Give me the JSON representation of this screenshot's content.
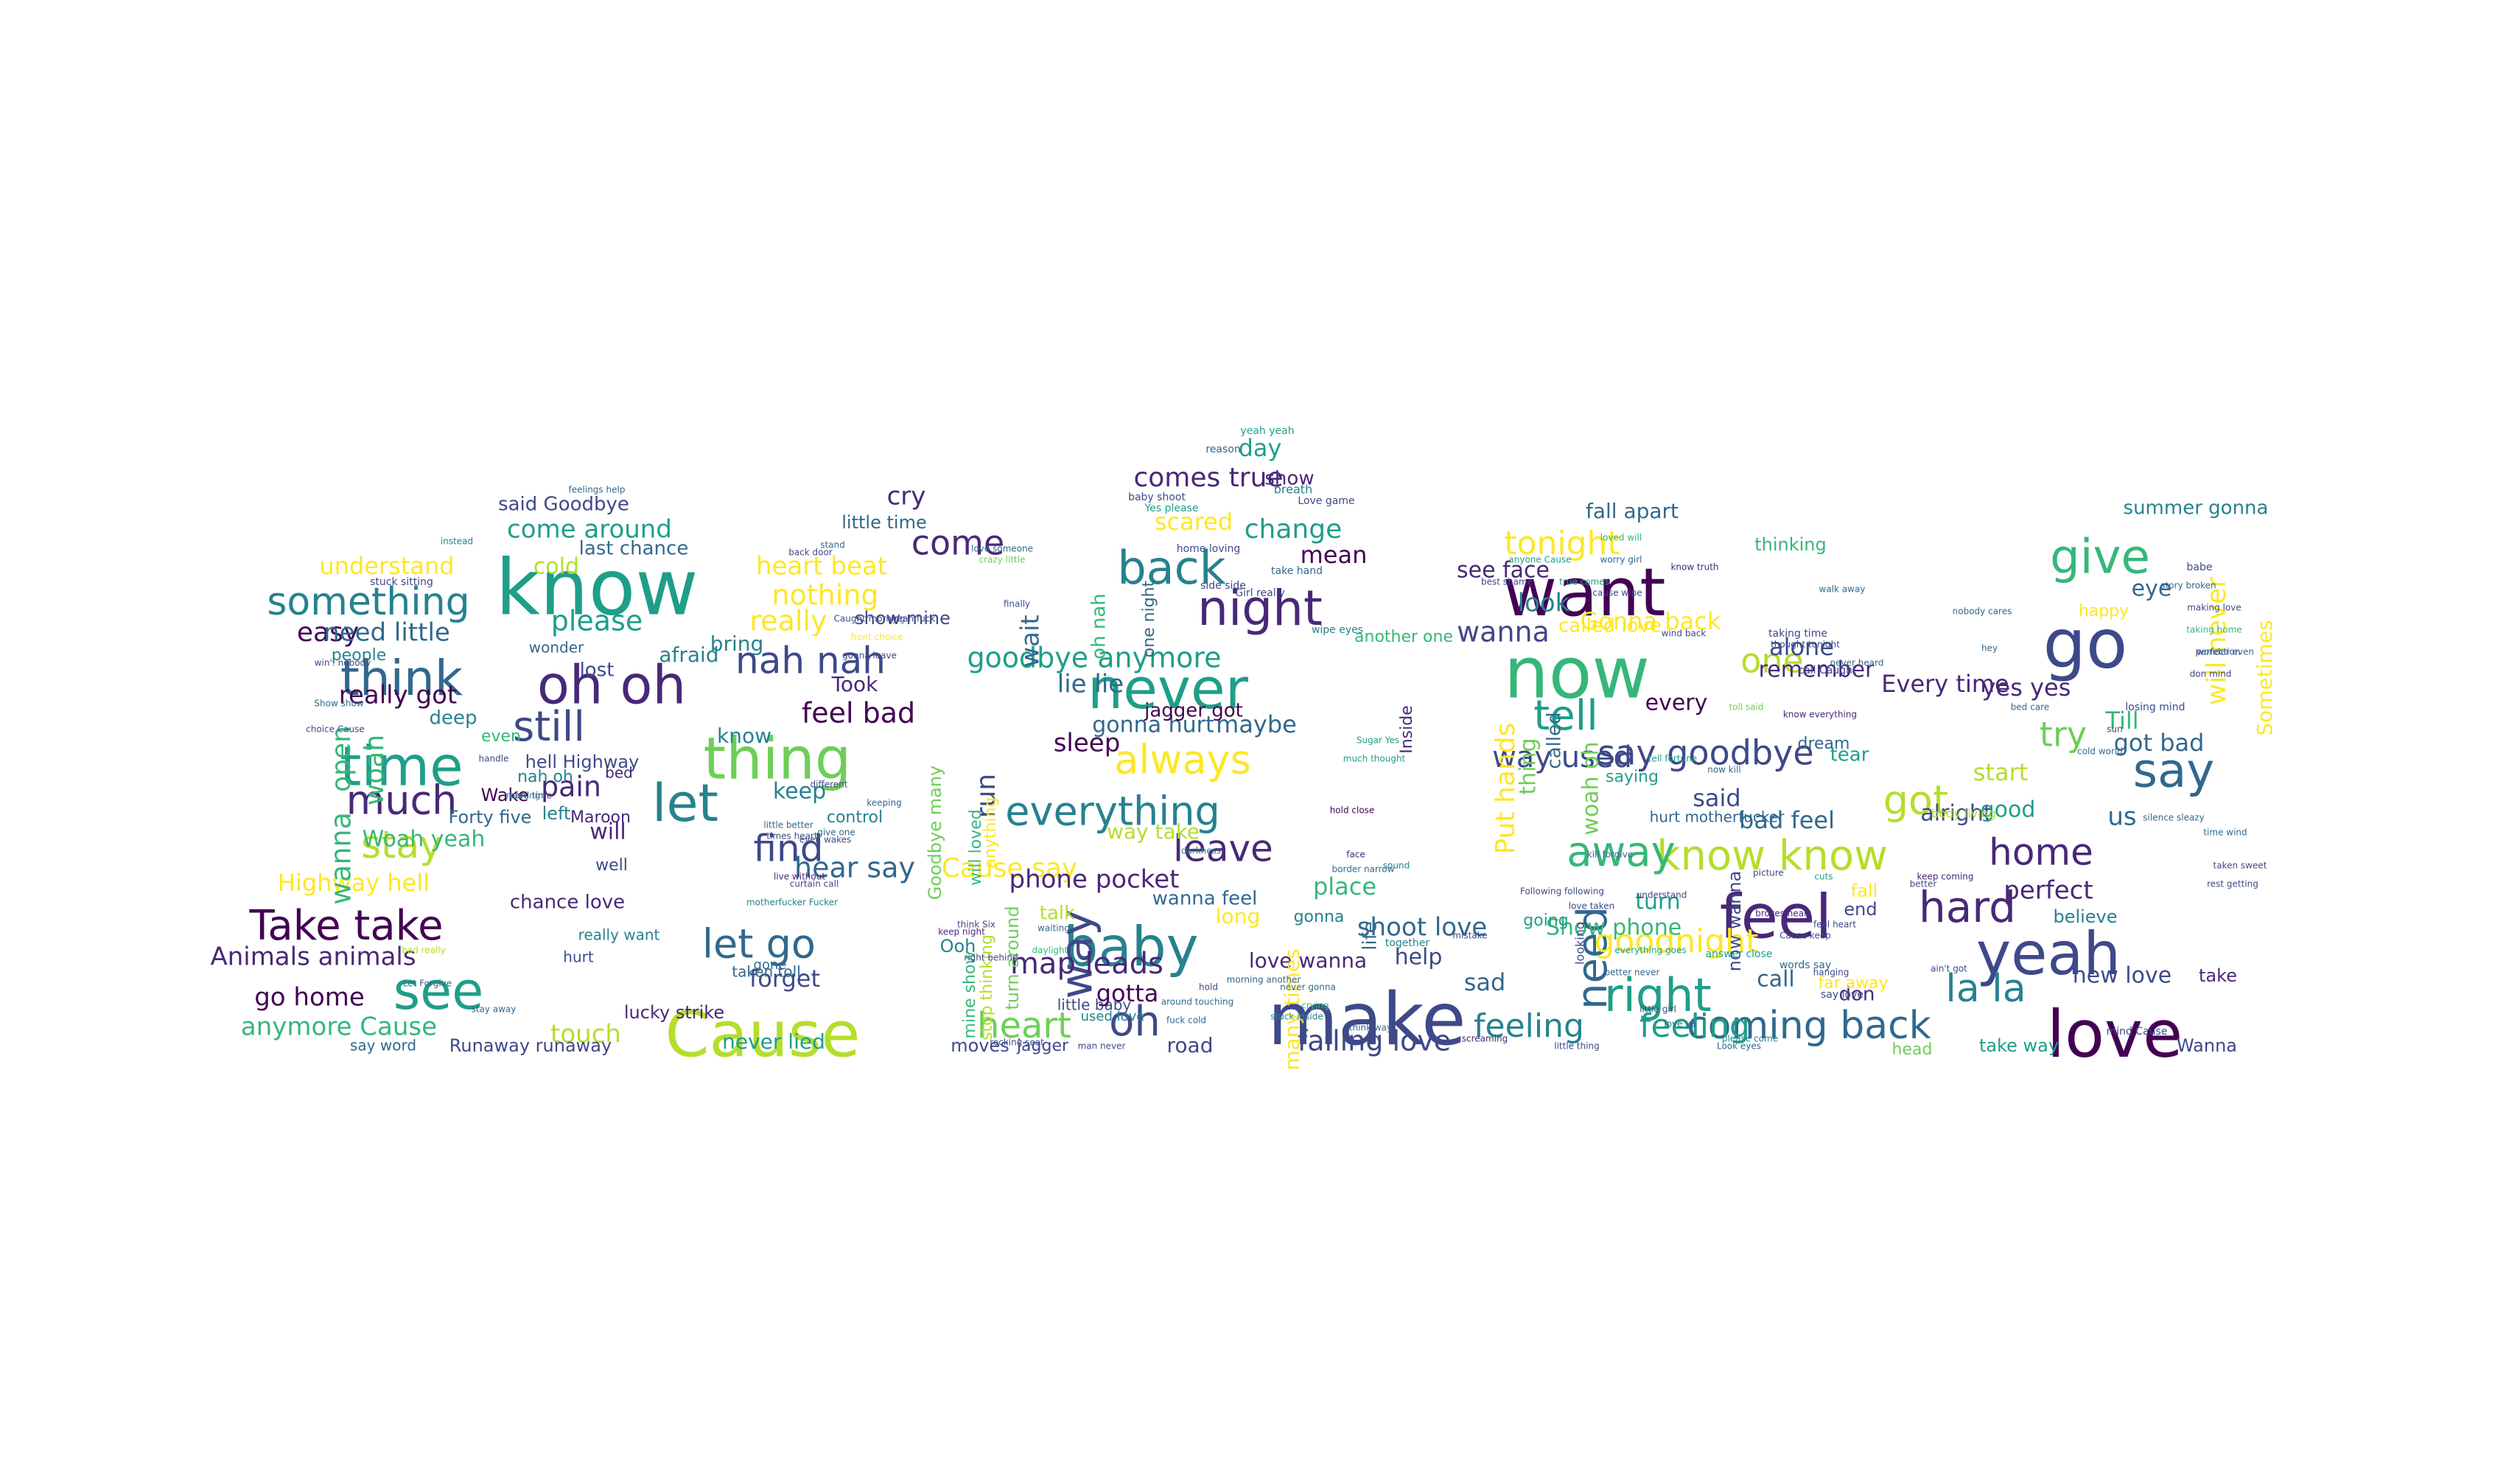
{
  "palette": [
    "#440154",
    "#482878",
    "#3e4989",
    "#31688e",
    "#26828e",
    "#1f9e89",
    "#35b779",
    "#6ece58",
    "#b5de2b",
    "#fde725"
  ],
  "words": [
    {
      "t": "know",
      "c": 5
    },
    {
      "t": "make",
      "c": 2
    },
    {
      "t": "Cause",
      "c": 8
    },
    {
      "t": "want",
      "c": 0
    },
    {
      "t": "now",
      "c": 6
    },
    {
      "t": "never",
      "c": 5
    },
    {
      "t": "love",
      "c": 0
    },
    {
      "t": "yeah",
      "c": 2
    },
    {
      "t": "feel",
      "c": 1
    },
    {
      "t": "baby",
      "c": 4
    },
    {
      "t": "go",
      "c": 2
    },
    {
      "t": "oh oh",
      "c": 1
    },
    {
      "t": "thing",
      "c": 7
    },
    {
      "t": "time",
      "c": 5
    },
    {
      "t": "let",
      "c": 4
    },
    {
      "t": "think",
      "c": 3
    },
    {
      "t": "night",
      "c": 1
    },
    {
      "t": "back",
      "c": 4
    },
    {
      "t": "see",
      "c": 5
    },
    {
      "t": "tell",
      "c": 5
    },
    {
      "t": "say",
      "c": 3
    },
    {
      "t": "way",
      "c": 2
    },
    {
      "t": "hard",
      "c": 1
    },
    {
      "t": "give",
      "c": 6
    },
    {
      "t": "right",
      "c": 5
    },
    {
      "t": "everything",
      "c": 4
    },
    {
      "t": "know know",
      "c": 8
    },
    {
      "t": "goodbye anymore",
      "c": 5
    },
    {
      "t": "always",
      "c": 9
    },
    {
      "t": "something",
      "c": 4
    },
    {
      "t": "much",
      "c": 1
    },
    {
      "t": "stay",
      "c": 8
    },
    {
      "t": "still",
      "c": 2
    },
    {
      "t": "nah nah",
      "c": 2
    },
    {
      "t": "let go",
      "c": 3
    },
    {
      "t": "find",
      "c": 2
    },
    {
      "t": "Take take",
      "c": 0
    },
    {
      "t": "heart",
      "c": 7
    },
    {
      "t": "leave",
      "c": 1
    },
    {
      "t": "oh",
      "c": 2
    },
    {
      "t": "tonight",
      "c": 9
    },
    {
      "t": "away",
      "c": 6
    },
    {
      "t": "need",
      "c": 3
    },
    {
      "t": "coming back",
      "c": 3
    },
    {
      "t": "la la",
      "c": 4
    },
    {
      "t": "got",
      "c": 8
    },
    {
      "t": "say goodbye",
      "c": 2
    },
    {
      "t": "goodnight",
      "c": 9
    },
    {
      "t": "home",
      "c": 1
    },
    {
      "t": "feeling",
      "c": 4
    },
    {
      "t": "feeling",
      "c": 5
    },
    {
      "t": "falling love",
      "c": 2
    },
    {
      "t": "one",
      "c": 8
    },
    {
      "t": "try",
      "c": 7
    },
    {
      "t": "come",
      "c": 1
    },
    {
      "t": "come around",
      "c": 5
    },
    {
      "t": "understand",
      "c": 9
    },
    {
      "t": "cold",
      "c": 8
    },
    {
      "t": "please",
      "c": 5
    },
    {
      "t": "easy",
      "c": 0
    },
    {
      "t": "need little",
      "c": 3
    },
    {
      "t": "really got",
      "c": 0
    },
    {
      "t": "nothing",
      "c": 9
    },
    {
      "t": "really",
      "c": 9
    },
    {
      "t": "feel bad",
      "c": 0
    },
    {
      "t": "wait",
      "c": 3
    },
    {
      "t": "cry",
      "c": 1
    },
    {
      "t": "little time",
      "c": 3
    },
    {
      "t": "heart beat",
      "c": 9
    },
    {
      "t": "last chance",
      "c": 3
    },
    {
      "t": "said Goodbye",
      "c": 2
    },
    {
      "t": "Highway hell",
      "c": 9
    },
    {
      "t": "Animals animals",
      "c": 1
    },
    {
      "t": "go home",
      "c": 0
    },
    {
      "t": "anymore Cause",
      "c": 6
    },
    {
      "t": "touch",
      "c": 8
    },
    {
      "t": "pain",
      "c": 1
    },
    {
      "t": "Woah yeah",
      "c": 6
    },
    {
      "t": "will",
      "c": 1
    },
    {
      "t": "hell Highway",
      "c": 2
    },
    {
      "t": "keep",
      "c": 4
    },
    {
      "t": "hear say",
      "c": 3
    },
    {
      "t": "Cause say",
      "c": 9
    },
    {
      "t": "run",
      "c": 2
    },
    {
      "t": "forget",
      "c": 2
    },
    {
      "t": "never lied",
      "c": 5
    },
    {
      "t": "phone pocket",
      "c": 1
    },
    {
      "t": "map leads",
      "c": 1
    },
    {
      "t": "gotta",
      "c": 0
    },
    {
      "t": "road",
      "c": 2
    },
    {
      "t": "lie lie",
      "c": 3
    },
    {
      "t": "sleep",
      "c": 0
    },
    {
      "t": "maybe",
      "c": 3
    },
    {
      "t": "comes true",
      "c": 1
    },
    {
      "t": "day",
      "c": 5
    },
    {
      "t": "show",
      "c": 1
    },
    {
      "t": "scared",
      "c": 9
    },
    {
      "t": "change",
      "c": 5
    },
    {
      "t": "mean",
      "c": 0
    },
    {
      "t": "place",
      "c": 6
    },
    {
      "t": "shoot love",
      "c": 3
    },
    {
      "t": "help",
      "c": 2
    },
    {
      "t": "love wanna",
      "c": 1
    },
    {
      "t": "wanna",
      "c": 2
    },
    {
      "t": "look",
      "c": 4
    },
    {
      "t": "see face",
      "c": 1
    },
    {
      "t": "Gonna back",
      "c": 9
    },
    {
      "t": "called love",
      "c": 9
    },
    {
      "t": "way used",
      "c": 2
    },
    {
      "t": "alone",
      "c": 2
    },
    {
      "t": "remember",
      "c": 1
    },
    {
      "t": "every",
      "c": 0
    },
    {
      "t": "said",
      "c": 2
    },
    {
      "t": "bad feel",
      "c": 3
    },
    {
      "t": "turn",
      "c": 5
    },
    {
      "t": "Show phone",
      "c": 6
    },
    {
      "t": "don",
      "c": 1
    },
    {
      "t": "call",
      "c": 3
    },
    {
      "t": "sad",
      "c": 3
    },
    {
      "t": "eye",
      "c": 3
    },
    {
      "t": "happy",
      "c": 9
    },
    {
      "t": "Every time",
      "c": 1
    },
    {
      "t": "yes yes",
      "c": 1
    },
    {
      "t": "Till",
      "c": 6
    },
    {
      "t": "got bad",
      "c": 3
    },
    {
      "t": "start",
      "c": 8
    },
    {
      "t": "alright",
      "c": 2
    },
    {
      "t": "good",
      "c": 5
    },
    {
      "t": "us",
      "c": 3
    },
    {
      "t": "perfect",
      "c": 1
    },
    {
      "t": "believe",
      "c": 4
    },
    {
      "t": "new love",
      "c": 2
    },
    {
      "t": "take way",
      "c": 5
    },
    {
      "t": "Wanna",
      "c": 2
    },
    {
      "t": "summer gonna",
      "c": 4
    },
    {
      "t": "take",
      "c": 1
    },
    {
      "t": "fall apart",
      "c": 3
    },
    {
      "t": "thinking",
      "c": 6
    },
    {
      "t": "fall",
      "c": 9
    },
    {
      "t": "end",
      "c": 2
    },
    {
      "t": "open",
      "c": 6
    },
    {
      "t": "woah",
      "c": 6
    },
    {
      "t": "wanna",
      "c": 6
    },
    {
      "t": "know",
      "c": 4
    },
    {
      "t": "bring",
      "c": 4
    },
    {
      "t": "afraid",
      "c": 4
    },
    {
      "t": "lost",
      "c": 2
    },
    {
      "t": "deep",
      "c": 4
    },
    {
      "t": "even",
      "c": 6
    },
    {
      "t": "nah oh",
      "c": 4
    },
    {
      "t": "bed",
      "c": 1
    },
    {
      "t": "Wake",
      "c": 0
    },
    {
      "t": "Forty five",
      "c": 3
    },
    {
      "t": "left",
      "c": 4
    },
    {
      "t": "Maroon",
      "c": 1
    },
    {
      "t": "well",
      "c": 2
    },
    {
      "t": "chance love",
      "c": 1
    },
    {
      "t": "really want",
      "c": 4
    },
    {
      "t": "wonder",
      "c": 3
    },
    {
      "t": "people",
      "c": 4
    },
    {
      "t": "say word",
      "c": 3
    },
    {
      "t": "Runaway runaway",
      "c": 2
    },
    {
      "t": "lucky strike",
      "c": 1
    },
    {
      "t": "taken toll",
      "c": 3
    },
    {
      "t": "gone",
      "c": 3
    },
    {
      "t": "hurt",
      "c": 2
    },
    {
      "t": "control",
      "c": 4
    },
    {
      "t": "Took",
      "c": 1
    },
    {
      "t": "show mine",
      "c": 2
    },
    {
      "t": "anything",
      "c": 9
    },
    {
      "t": "will loved",
      "c": 6
    },
    {
      "t": "Goodbye many",
      "c": 7
    },
    {
      "t": "stop thinking",
      "c": 8
    },
    {
      "t": "turn around",
      "c": 7
    },
    {
      "t": "mine show",
      "c": 6
    },
    {
      "t": "talk",
      "c": 8
    },
    {
      "t": "Ooh",
      "c": 4
    },
    {
      "t": "moves",
      "c": 2
    },
    {
      "t": "jagger",
      "c": 2
    },
    {
      "t": "little baby",
      "c": 2
    },
    {
      "t": "used love",
      "c": 4
    },
    {
      "t": "oh nah",
      "c": 6
    },
    {
      "t": "one night",
      "c": 3
    },
    {
      "t": "way take",
      "c": 8
    },
    {
      "t": "wanna feel",
      "c": 3
    },
    {
      "t": "gonna hurt",
      "c": 3
    },
    {
      "t": "jagger got",
      "c": 0
    },
    {
      "t": "long",
      "c": 9
    },
    {
      "t": "many times",
      "c": 9
    },
    {
      "t": "gonna",
      "c": 4
    },
    {
      "t": "life",
      "c": 3
    },
    {
      "t": "Inside",
      "c": 1
    },
    {
      "t": "another one",
      "c": 6
    },
    {
      "t": "going",
      "c": 5
    },
    {
      "t": "Put hands",
      "c": 9
    },
    {
      "t": "called",
      "c": 3
    },
    {
      "t": "thing",
      "c": 7
    },
    {
      "t": "woah oh",
      "c": 7
    },
    {
      "t": "looking",
      "c": 2
    },
    {
      "t": "saying",
      "c": 5
    },
    {
      "t": "hurt motherfucker",
      "c": 3
    },
    {
      "t": "now wanna",
      "c": 2
    },
    {
      "t": "dream",
      "c": 3
    },
    {
      "t": "tear",
      "c": 5
    },
    {
      "t": "far away",
      "c": 9
    },
    {
      "t": "head",
      "c": 7
    },
    {
      "t": "Sometimes",
      "c": 9
    },
    {
      "t": "will never",
      "c": 9
    },
    {
      "t": "body living",
      "c": 8
    },
    {
      "t": "yeah yeah",
      "c": 5
    },
    {
      "t": "reason",
      "c": 3
    },
    {
      "t": "breath",
      "c": 4
    },
    {
      "t": "Love game",
      "c": 2
    },
    {
      "t": "baby shoot",
      "c": 2
    },
    {
      "t": "Yes please",
      "c": 5
    },
    {
      "t": "home loving",
      "c": 2
    },
    {
      "t": "take hand",
      "c": 3
    },
    {
      "t": "side side",
      "c": 2
    },
    {
      "t": "Girl really",
      "c": 2
    },
    {
      "t": "wipe eyes",
      "c": 4
    },
    {
      "t": "Sugar Yes",
      "c": 5
    },
    {
      "t": "much thought",
      "c": 5
    },
    {
      "t": "hold close",
      "c": 0
    },
    {
      "t": "face",
      "c": 1
    },
    {
      "t": "sound",
      "c": 4
    },
    {
      "t": "darkness",
      "c": 4
    },
    {
      "t": "border narrow",
      "c": 3
    },
    {
      "t": "morning another",
      "c": 3
    },
    {
      "t": "hold",
      "c": 2
    },
    {
      "t": "never gonna",
      "c": 3
    },
    {
      "t": "crying",
      "c": 6
    },
    {
      "t": "together",
      "c": 4
    },
    {
      "t": "mistake",
      "c": 2
    },
    {
      "t": "think way",
      "c": 3
    },
    {
      "t": "screaming",
      "c": 1
    },
    {
      "t": "little thing",
      "c": 2
    },
    {
      "t": "everything goes",
      "c": 5
    },
    {
      "t": "better never",
      "c": 3
    },
    {
      "t": "little girl",
      "c": 2
    },
    {
      "t": "love ya",
      "c": 3
    },
    {
      "t": "Look eyes",
      "c": 3
    },
    {
      "t": "please come",
      "c": 4
    },
    {
      "t": "answer close",
      "c": 5
    },
    {
      "t": "words say",
      "c": 3
    },
    {
      "t": "say love",
      "c": 2
    },
    {
      "t": "hanging",
      "c": 2
    },
    {
      "t": "brokes heart",
      "c": 1
    },
    {
      "t": "feel heart",
      "c": 2
    },
    {
      "t": "better",
      "c": 2
    },
    {
      "t": "ain't got",
      "c": 2
    },
    {
      "t": "keep coming",
      "c": 1
    },
    {
      "t": "mind Cause",
      "c": 2
    },
    {
      "t": "babe",
      "c": 2
    },
    {
      "t": "story broken",
      "c": 3
    },
    {
      "t": "making love",
      "c": 2
    },
    {
      "t": "taking home",
      "c": 6
    },
    {
      "t": "perfection",
      "c": 2
    },
    {
      "t": "don mind",
      "c": 2
    },
    {
      "t": "cold world",
      "c": 3
    },
    {
      "t": "sun",
      "c": 2
    },
    {
      "t": "bed care",
      "c": 3
    },
    {
      "t": "loved will",
      "c": 6
    },
    {
      "t": "worry girl",
      "c": 3
    },
    {
      "t": "anyone Cause",
      "c": 5
    },
    {
      "t": "true comes",
      "c": 5
    },
    {
      "t": "cause wipe",
      "c": 2
    },
    {
      "t": "best shame",
      "c": 2
    },
    {
      "t": "know truth",
      "c": 1
    },
    {
      "t": "walk away",
      "c": 3
    },
    {
      "t": "wind back",
      "c": 2
    },
    {
      "t": "taking time",
      "c": 2
    },
    {
      "t": "thought tonight",
      "c": 2
    },
    {
      "t": "never heard",
      "c": 3
    },
    {
      "t": "call Caught",
      "c": 2
    },
    {
      "t": "know everything",
      "c": 1
    },
    {
      "t": "now kill",
      "c": 3
    },
    {
      "t": "toll said",
      "c": 7
    },
    {
      "t": "tell fortune",
      "c": 5
    },
    {
      "t": "understand",
      "c": 2
    },
    {
      "t": "love taken",
      "c": 2
    },
    {
      "t": "kill forgive",
      "c": 3
    },
    {
      "t": "Following following",
      "c": 2
    },
    {
      "t": "picture",
      "c": 2
    },
    {
      "t": "cuts",
      "c": 5
    },
    {
      "t": "Cause keep",
      "c": 2
    },
    {
      "t": "stuck inside",
      "c": 4
    },
    {
      "t": "around touching",
      "c": 3
    },
    {
      "t": "fuck cold",
      "c": 3
    },
    {
      "t": "man never",
      "c": 2
    },
    {
      "t": "daylight",
      "c": 6
    },
    {
      "t": "waiting",
      "c": 3
    },
    {
      "t": "rocking seat",
      "c": 2
    },
    {
      "t": "motherfucker Fucker",
      "c": 4
    },
    {
      "t": "think Six",
      "c": 2
    },
    {
      "t": "keep night",
      "c": 1
    },
    {
      "t": "even wakes",
      "c": 2
    },
    {
      "t": "give one",
      "c": 3
    },
    {
      "t": "live without",
      "c": 1
    },
    {
      "t": "curtain call",
      "c": 2
    },
    {
      "t": "times heart",
      "c": 2
    },
    {
      "t": "little better",
      "c": 3
    },
    {
      "t": "gonna leave",
      "c": 2
    },
    {
      "t": "back door",
      "c": 2
    },
    {
      "t": "yeah fuck",
      "c": 2
    },
    {
      "t": "front choice",
      "c": 9
    },
    {
      "t": "finally",
      "c": 2
    },
    {
      "t": "stand",
      "c": 3
    },
    {
      "t": "crazy little",
      "c": 7
    },
    {
      "t": "love someone",
      "c": 3
    },
    {
      "t": "instead",
      "c": 4
    },
    {
      "t": "feelings help",
      "c": 3
    },
    {
      "t": "stuck sitting",
      "c": 2
    },
    {
      "t": "win': nobody",
      "c": 2
    },
    {
      "t": "Show show",
      "c": 3
    },
    {
      "t": "choice Cause",
      "c": 2
    },
    {
      "t": "handle",
      "c": 2
    },
    {
      "t": "running",
      "c": 5
    },
    {
      "t": "hard time",
      "c": 2
    },
    {
      "t": "bad really",
      "c": 8
    },
    {
      "t": "Let Forgive",
      "c": 3
    },
    {
      "t": "stay away",
      "c": 3
    },
    {
      "t": "Caught morning",
      "c": 2
    },
    {
      "t": "different",
      "c": 2
    },
    {
      "t": "keeping",
      "c": 3
    },
    {
      "t": "right behind",
      "c": 2
    },
    {
      "t": "losing mind",
      "c": 2
    },
    {
      "t": "wonder even",
      "c": 3
    },
    {
      "t": "silence sleazy",
      "c": 3
    },
    {
      "t": "time wind",
      "c": 3
    },
    {
      "t": "taken sweet",
      "c": 2
    },
    {
      "t": "rest getting",
      "c": 2
    },
    {
      "t": "nobody cares",
      "c": 3
    },
    {
      "t": "hey",
      "c": 3
    },
    {
      "t": "two",
      "c": 2
    },
    {
      "t": "got moves",
      "c": 4
    },
    {
      "t": "sitting",
      "c": 5
    },
    {
      "t": "surely",
      "c": 2
    },
    {
      "t": "Oh hey",
      "c": 3
    },
    {
      "t": "Nana surely",
      "c": 5
    },
    {
      "t": "killing gonna",
      "c": 4
    },
    {
      "t": "ask him",
      "c": 3
    },
    {
      "t": "phone ring",
      "c": 2
    },
    {
      "t": "always give",
      "c": 3
    },
    {
      "t": "move",
      "c": 2
    },
    {
      "t": "hurts bad",
      "c": 3
    }
  ]
}
